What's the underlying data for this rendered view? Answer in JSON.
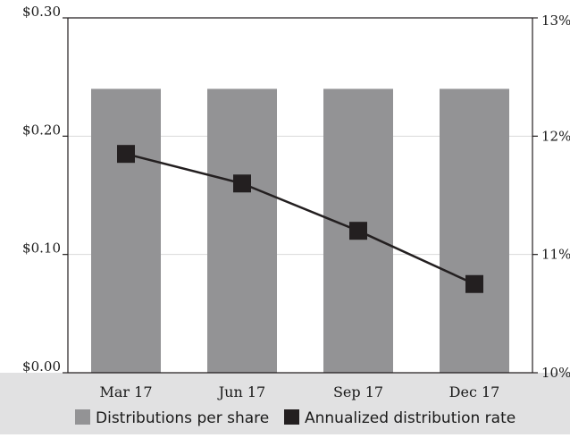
{
  "chart_data": {
    "type": "bar",
    "categories": [
      "Mar 17",
      "Jun 17",
      "Sep 17",
      "Dec 17"
    ],
    "series": [
      {
        "name": "Distributions per share",
        "type": "bar",
        "axis": "left",
        "values": [
          0.24,
          0.24,
          0.24,
          0.24
        ],
        "color": "#939395"
      },
      {
        "name": "Annualized distribution rate",
        "type": "line",
        "axis": "right",
        "values": [
          11.85,
          11.6,
          11.2,
          10.75
        ],
        "color": "#231f20"
      }
    ],
    "y_left": {
      "min": 0,
      "max": 0.3,
      "ticks": [
        "$0.00",
        "$0.10",
        "$0.20",
        "$0.30"
      ],
      "tick_values": [
        0,
        0.1,
        0.2,
        0.3
      ]
    },
    "y_right": {
      "min": 10,
      "max": 13,
      "ticks": [
        "10%",
        "11%",
        "12%",
        "13%"
      ],
      "tick_values": [
        10,
        11,
        12,
        13
      ]
    },
    "grid": true,
    "legend_position": "bottom",
    "colors": {
      "bar": "#939395",
      "line": "#231f20",
      "legend_band": "#e1e1e2",
      "grid": "#d9d9d9"
    }
  }
}
